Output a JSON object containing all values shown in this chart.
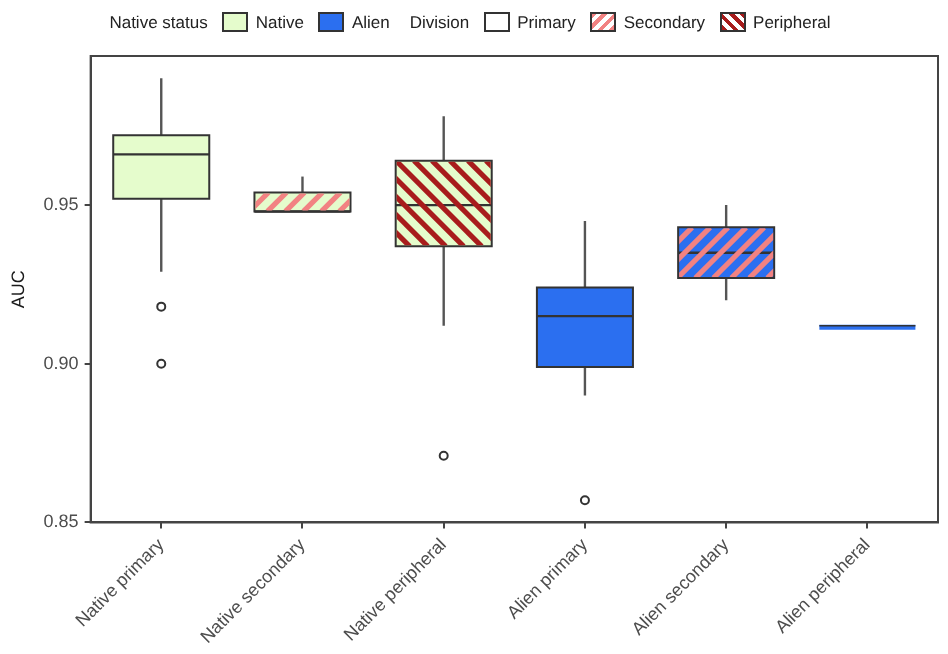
{
  "chart_data": {
    "type": "box",
    "ylabel": "AUC",
    "legend": "top",
    "legend_title": "Native status",
    "annotations": [
      "Division",
      "Primary",
      "Secondary",
      "Peripheral"
    ],
    "categories": [
      "Native primary",
      "Native secondary",
      "Native peripheral",
      "Alien primary",
      "Alien secondary",
      "Alien peripheral"
    ],
    "ylim": [
      0.85,
      0.997
    ],
    "yticks": [
      0.85,
      {
        "value": 0.9,
        "label": "0.90"
      },
      0.95
    ],
    "grid": false,
    "series": [
      {
        "name": "Native",
        "color": "#e5fccc",
        "boxes": [
          {
            "low": 0.929,
            "q1": 0.952,
            "median": 0.966,
            "q3": 0.972,
            "high": 0.99,
            "outliers": [
              0.918,
              0.9
            ]
          },
          {
            "low": 0.948,
            "q1": 0.948,
            "median": 0.948,
            "q3": 0.954,
            "high": 0.959
          },
          {
            "low": 0.912,
            "q1": 0.937,
            "median": 0.95,
            "q3": 0.964,
            "high": 0.978,
            "outliers": [
              0.871
            ]
          },
          null,
          null,
          null
        ]
      },
      {
        "name": "Alien",
        "color": "#2b6ff0",
        "boxes": [
          null,
          null,
          null,
          {
            "low": 0.89,
            "q1": 0.899,
            "median": 0.915,
            "q3": 0.924,
            "high": 0.945,
            "outliers": [
              0.857
            ]
          },
          {
            "low": 0.92,
            "q1": 0.927,
            "median": 0.935,
            "q3": 0.943,
            "high": 0.95
          },
          {
            "low": 0.912,
            "q1": 0.912,
            "median": 0.912,
            "q3": 0.912,
            "high": 0.912
          }
        ]
      }
    ]
  }
}
